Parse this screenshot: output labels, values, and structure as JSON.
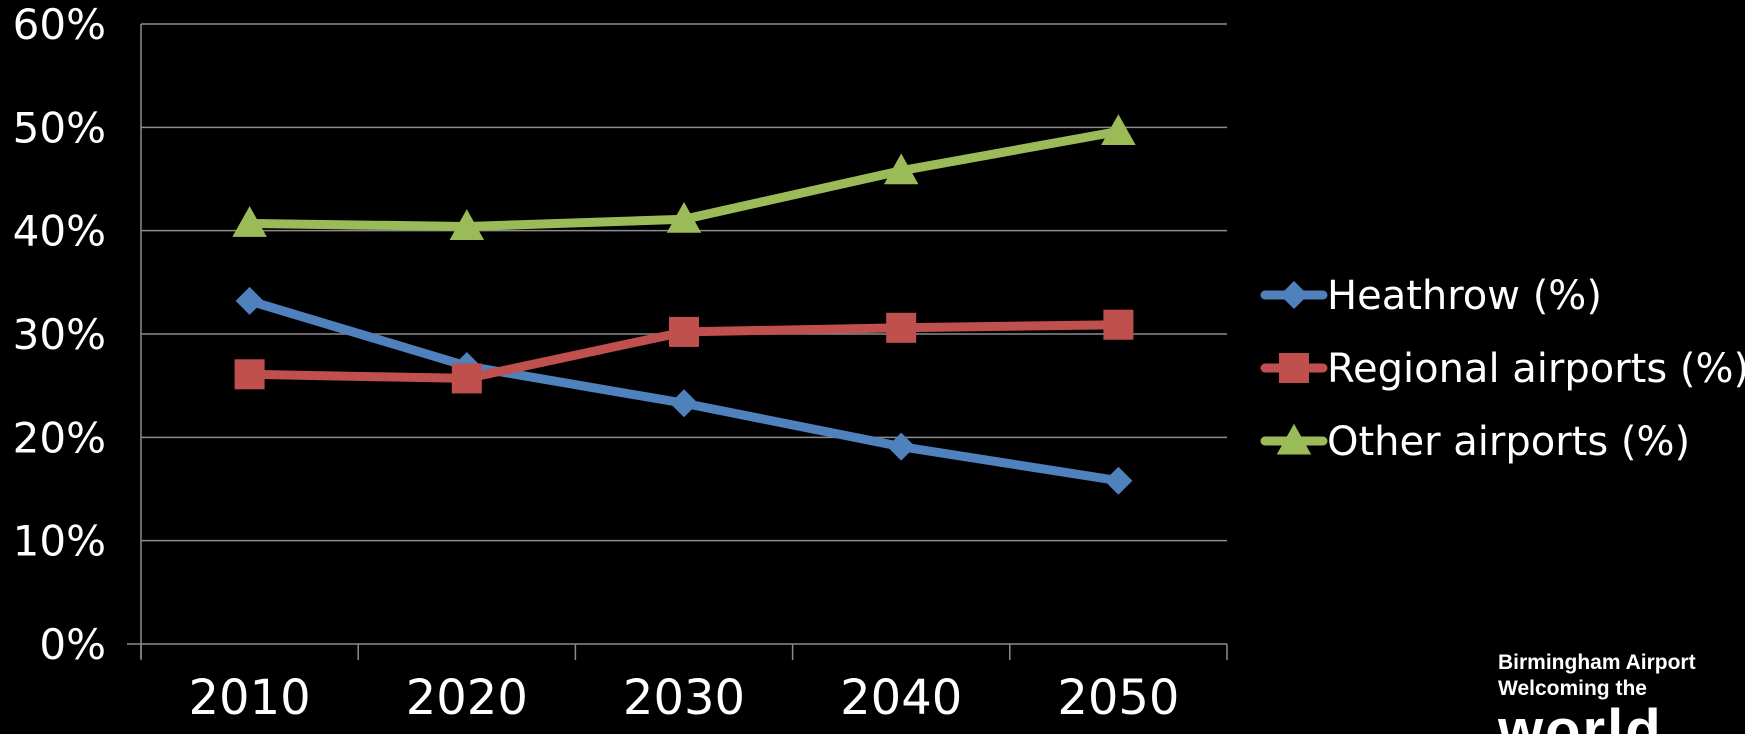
{
  "chart_data": {
    "type": "line",
    "categories": [
      "2010",
      "2020",
      "2030",
      "2040",
      "2050"
    ],
    "y_ticks": [
      "0%",
      "10%",
      "20%",
      "30%",
      "40%",
      "50%",
      "60%"
    ],
    "ylim": [
      0,
      60
    ],
    "grid": true,
    "legend_position": "right",
    "series": [
      {
        "name": "Heathrow (%)",
        "values": [
          33.2,
          26.9,
          23.3,
          19.1,
          15.8
        ],
        "color": "#4F81BD",
        "marker": "diamond"
      },
      {
        "name": "Regional airports (%)",
        "values": [
          26.1,
          25.7,
          30.2,
          30.6,
          30.9
        ],
        "color": "#C0504D",
        "marker": "square"
      },
      {
        "name": "Other airports (%)",
        "values": [
          40.7,
          40.4,
          41.1,
          45.8,
          49.6
        ],
        "color": "#9BBB59",
        "marker": "triangle"
      }
    ]
  },
  "logo": {
    "line1": "Birmingham Airport",
    "line2": "Welcoming the",
    "line3": "world",
    "icon": "globe-logo"
  }
}
